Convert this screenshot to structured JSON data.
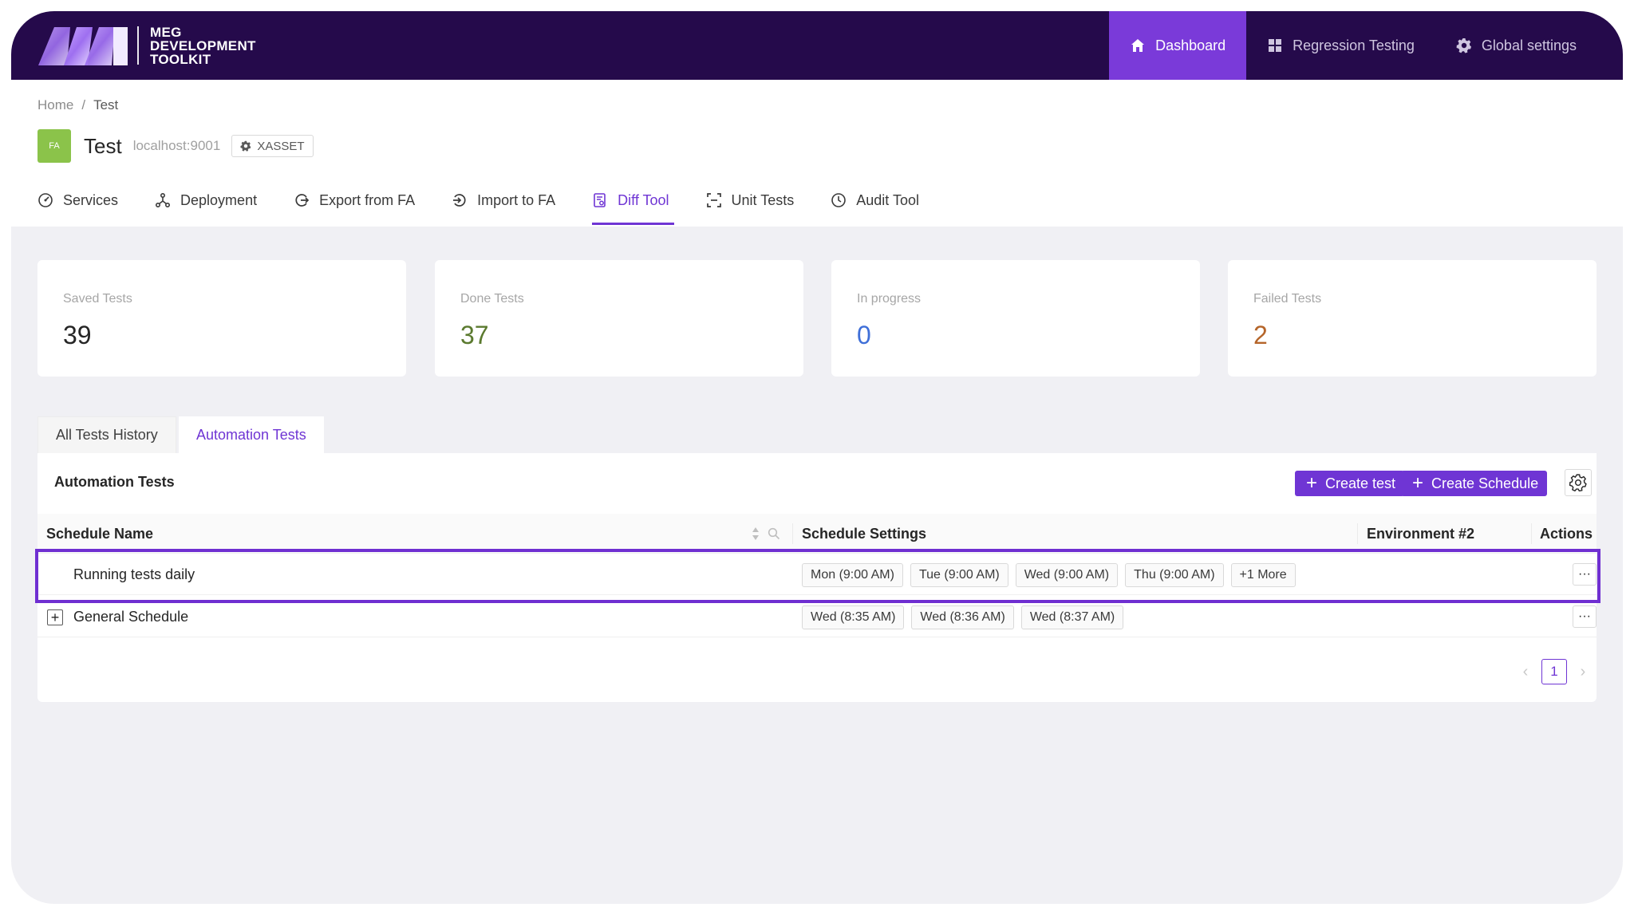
{
  "brand": {
    "logo_mark": "MEG logo",
    "line1": "MEG",
    "line2": "DEVELOPMENT",
    "line3": "TOOLKIT"
  },
  "topnav": [
    {
      "label": "Dashboard",
      "icon": "home-icon",
      "active": true
    },
    {
      "label": "Regression Testing",
      "icon": "grid-icon",
      "active": false
    },
    {
      "label": "Global settings",
      "icon": "gear-icon",
      "active": false
    }
  ],
  "breadcrumb": {
    "home": "Home",
    "sep": "/",
    "current": "Test"
  },
  "header": {
    "avatar": "FA",
    "title": "Test",
    "host": "localhost:9001",
    "tag": "XASSET"
  },
  "tabs": [
    {
      "label": "Services",
      "icon": "dashboard-icon"
    },
    {
      "label": "Deployment",
      "icon": "deployment-icon"
    },
    {
      "label": "Export from FA",
      "icon": "export-icon"
    },
    {
      "label": "Import to FA",
      "icon": "import-icon"
    },
    {
      "label": "Diff Tool",
      "icon": "diff-icon",
      "active": true
    },
    {
      "label": "Unit Tests",
      "icon": "unit-tests-icon"
    },
    {
      "label": "Audit Tool",
      "icon": "clock-icon"
    }
  ],
  "stats": [
    {
      "label": "Saved Tests",
      "value": "39",
      "color": "#262626"
    },
    {
      "label": "Done Tests",
      "value": "37",
      "color": "#5b7a2f"
    },
    {
      "label": "In progress",
      "value": "0",
      "color": "#3f6fd8"
    },
    {
      "label": "Failed Tests",
      "value": "2",
      "color": "#b5652a"
    }
  ],
  "card_tabs": {
    "history": "All Tests History",
    "automation": "Automation Tests"
  },
  "card": {
    "title": "Automation Tests",
    "create_test": "Create test",
    "create_schedule": "Create Schedule"
  },
  "table": {
    "columns": {
      "name": "Schedule Name",
      "settings": "Schedule Settings",
      "env": "Environment #2",
      "actions": "Actions"
    },
    "rows": [
      {
        "name": "Running tests daily",
        "expandable": false,
        "chips": [
          "Mon (9:00 AM)",
          "Tue (9:00 AM)",
          "Wed (9:00 AM)",
          "Thu (9:00 AM)",
          "+1 More"
        ],
        "actions": "···",
        "highlighted": true
      },
      {
        "name": "General Schedule",
        "expandable": true,
        "chips": [
          "Wed (8:35 AM)",
          "Wed (8:36 AM)",
          "Wed (8:37 AM)"
        ],
        "actions": "···",
        "highlighted": false
      }
    ]
  },
  "pagination": {
    "prev": "‹",
    "page": "1",
    "next": "›"
  },
  "colors": {
    "accent": "#6f35d4",
    "topbar": "#250a4b",
    "topnav_active": "#7a3ad9",
    "highlight": "#6f2fd1"
  }
}
